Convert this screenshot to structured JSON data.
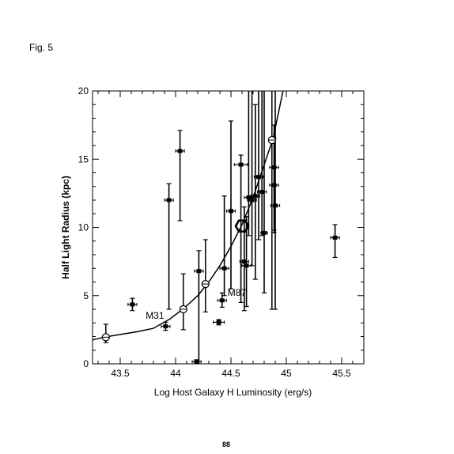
{
  "figure": {
    "label": "Fig. 5",
    "page_number": "88"
  },
  "chart_data": {
    "type": "scatter",
    "title": "",
    "xlabel": "Log Host Galaxy H Luminosity (erg/s)",
    "ylabel": "Half Light Radius (kpc)",
    "xlim": [
      43.25,
      45.7
    ],
    "ylim": [
      0,
      20
    ],
    "xticks": [
      43.5,
      44,
      44.5,
      45,
      45.5
    ],
    "xtick_labels": [
      "43.5",
      "44",
      "44.5",
      "45",
      "45.5"
    ],
    "yticks": [
      0,
      5,
      10,
      15,
      20
    ],
    "ytick_labels": [
      "0",
      "5",
      "10",
      "15",
      "20"
    ],
    "grid": false,
    "annotations": [
      {
        "text": "M31",
        "x": 43.73,
        "y": 3.3
      },
      {
        "text": "M87",
        "x": 44.47,
        "y": 5.0
      }
    ],
    "curve": {
      "x": [
        43.25,
        43.35,
        43.5,
        43.65,
        43.8,
        43.95,
        44.08,
        44.2,
        44.3,
        44.4,
        44.5,
        44.6,
        44.7,
        44.8,
        44.88,
        44.97
      ],
      "y": [
        1.75,
        1.95,
        2.15,
        2.35,
        2.6,
        3.3,
        4.1,
        5.0,
        6.0,
        7.2,
        8.6,
        10.2,
        12.2,
        14.6,
        16.5,
        20.0
      ]
    },
    "circle_markers": [
      {
        "x": 43.37,
        "y": 1.95,
        "yerr_low": 1.55,
        "yerr_high": 2.9
      },
      {
        "x": 44.07,
        "y": 4.0,
        "yerr_low": 2.5,
        "yerr_high": 6.6
      },
      {
        "x": 44.27,
        "y": 5.85,
        "yerr_low": 3.8,
        "yerr_high": 9.1
      },
      {
        "x": 44.87,
        "y": 16.4,
        "yerr_low": 4.0,
        "yerr_high": 20.0
      }
    ],
    "hexagon_marker": {
      "x": 44.6,
      "y": 10.1
    },
    "points": [
      {
        "x": 43.61,
        "y": 4.35,
        "xerr": 0.04,
        "yerr_low": 3.9,
        "yerr_high": 4.8
      },
      {
        "x": 43.91,
        "y": 2.75,
        "xerr": 0.04,
        "yerr_low": 2.45,
        "yerr_high": 3.05
      },
      {
        "x": 43.94,
        "y": 12.0,
        "xerr": 0.04,
        "yerr_low": 4.0,
        "yerr_high": 13.2
      },
      {
        "x": 44.04,
        "y": 15.6,
        "xerr": 0.04,
        "yerr_low": 10.5,
        "yerr_high": 17.1
      },
      {
        "x": 44.19,
        "y": 0.15,
        "xerr": 0.04,
        "yerr_low": 0.0,
        "yerr_high": 0.3
      },
      {
        "x": 44.21,
        "y": 6.8,
        "xerr": 0.04,
        "yerr_low": 0.0,
        "yerr_high": 8.3
      },
      {
        "x": 44.39,
        "y": 3.05,
        "xerr": 0.05,
        "yerr_low": 2.85,
        "yerr_high": 3.25
      },
      {
        "x": 44.42,
        "y": 4.65,
        "xerr": 0.04,
        "yerr_low": 4.15,
        "yerr_high": 5.2
      },
      {
        "x": 44.44,
        "y": 7.0,
        "xerr": 0.04,
        "yerr_low": 5.0,
        "yerr_high": 12.3
      },
      {
        "x": 44.5,
        "y": 11.2,
        "xerr": 0.04,
        "yerr_low": 5.5,
        "yerr_high": 17.8
      },
      {
        "x": 44.59,
        "y": 14.6,
        "xerr": 0.06,
        "yerr_low": 4.5,
        "yerr_high": 15.3
      },
      {
        "x": 44.62,
        "y": 7.5,
        "xerr": 0.04,
        "yerr_low": 3.9,
        "yerr_high": 11.5
      },
      {
        "x": 44.64,
        "y": 7.2,
        "xerr": 0.04,
        "yerr_low": 4.2,
        "yerr_high": 10.8
      },
      {
        "x": 44.66,
        "y": 12.2,
        "xerr": 0.04,
        "yerr_low": 9.4,
        "yerr_high": 20.0
      },
      {
        "x": 44.69,
        "y": 12.0,
        "xerr": 0.04,
        "yerr_low": 7.2,
        "yerr_high": 20.0
      },
      {
        "x": 44.72,
        "y": 12.3,
        "xerr": 0.04,
        "yerr_low": 6.2,
        "yerr_high": 19.0
      },
      {
        "x": 44.75,
        "y": 13.7,
        "xerr": 0.04,
        "yerr_low": 9.1,
        "yerr_high": 20.0
      },
      {
        "x": 44.78,
        "y": 12.6,
        "xerr": 0.04,
        "yerr_low": 9.4,
        "yerr_high": 20.0
      },
      {
        "x": 44.8,
        "y": 9.6,
        "xerr": 0.03,
        "yerr_low": 5.2,
        "yerr_high": 20.0
      },
      {
        "x": 44.89,
        "y": 14.4,
        "xerr": 0.04,
        "yerr_low": 9.8,
        "yerr_high": 16.5
      },
      {
        "x": 44.89,
        "y": 13.1,
        "xerr": 0.04,
        "yerr_low": 9.6,
        "yerr_high": 17.5
      },
      {
        "x": 44.9,
        "y": 11.6,
        "xerr": 0.04,
        "yerr_low": 4.0,
        "yerr_high": 20.0
      },
      {
        "x": 45.44,
        "y": 9.25,
        "xerr": 0.04,
        "yerr_low": 7.8,
        "yerr_high": 10.2
      }
    ]
  }
}
